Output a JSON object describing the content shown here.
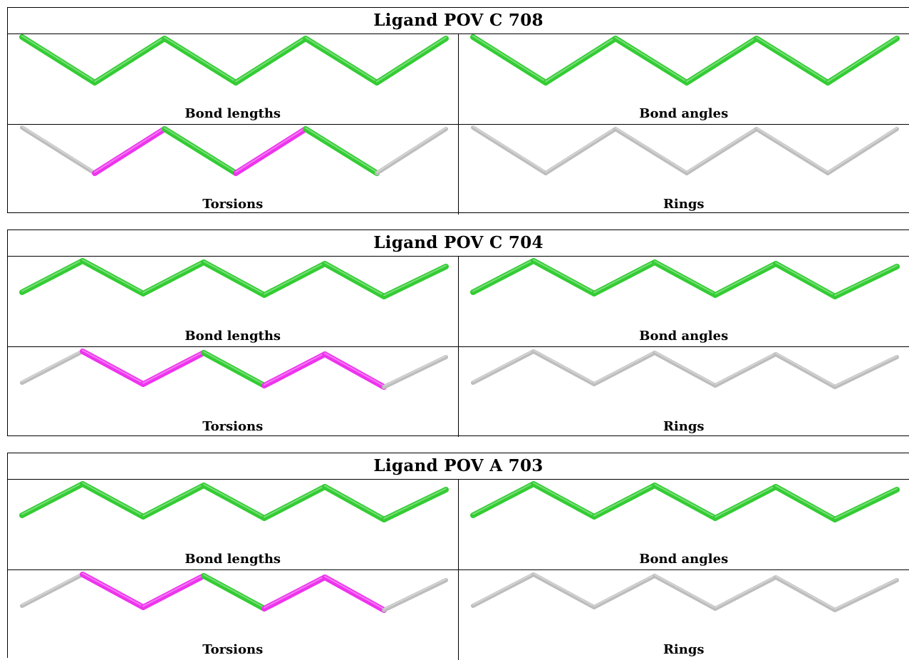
{
  "colors": {
    "ok": "#33cc33",
    "outlier": "#ee33ee",
    "none": "#bdbdbd"
  },
  "panels": [
    {
      "title": "Ligand POV C 708",
      "shape": "zigzag-down-first",
      "cells": [
        {
          "caption": "Bond lengths",
          "bond_colors": [
            "ok",
            "ok",
            "ok",
            "ok",
            "ok",
            "ok"
          ]
        },
        {
          "caption": "Bond angles",
          "bond_colors": [
            "ok",
            "ok",
            "ok",
            "ok",
            "ok",
            "ok"
          ]
        },
        {
          "caption": "Torsions",
          "bond_colors": [
            "none",
            "outlier",
            "ok",
            "outlier",
            "ok",
            "none"
          ]
        },
        {
          "caption": "Rings",
          "bond_colors": [
            "none",
            "none",
            "none",
            "none",
            "none",
            "none"
          ]
        }
      ]
    },
    {
      "title": "Ligand POV C 704",
      "shape": "zigzag-up-first",
      "cells": [
        {
          "caption": "Bond lengths",
          "bond_colors": [
            "ok",
            "ok",
            "ok",
            "ok",
            "ok",
            "ok",
            "ok"
          ]
        },
        {
          "caption": "Bond angles",
          "bond_colors": [
            "ok",
            "ok",
            "ok",
            "ok",
            "ok",
            "ok",
            "ok"
          ]
        },
        {
          "caption": "Torsions",
          "bond_colors": [
            "none",
            "outlier",
            "outlier",
            "ok",
            "outlier",
            "outlier",
            "none"
          ]
        },
        {
          "caption": "Rings",
          "bond_colors": [
            "none",
            "none",
            "none",
            "none",
            "none",
            "none",
            "none"
          ]
        }
      ]
    },
    {
      "title": "Ligand POV A 703",
      "shape": "zigzag-up-first",
      "cells": [
        {
          "caption": "Bond lengths",
          "bond_colors": [
            "ok",
            "ok",
            "ok",
            "ok",
            "ok",
            "ok",
            "ok"
          ]
        },
        {
          "caption": "Bond angles",
          "bond_colors": [
            "ok",
            "ok",
            "ok",
            "ok",
            "ok",
            "ok",
            "ok"
          ]
        },
        {
          "caption": "Torsions",
          "bond_colors": [
            "none",
            "outlier",
            "outlier",
            "ok",
            "outlier",
            "outlier",
            "none"
          ]
        },
        {
          "caption": "Rings",
          "bond_colors": [
            "none",
            "none",
            "none",
            "none",
            "none",
            "none",
            "none"
          ]
        }
      ]
    }
  ]
}
